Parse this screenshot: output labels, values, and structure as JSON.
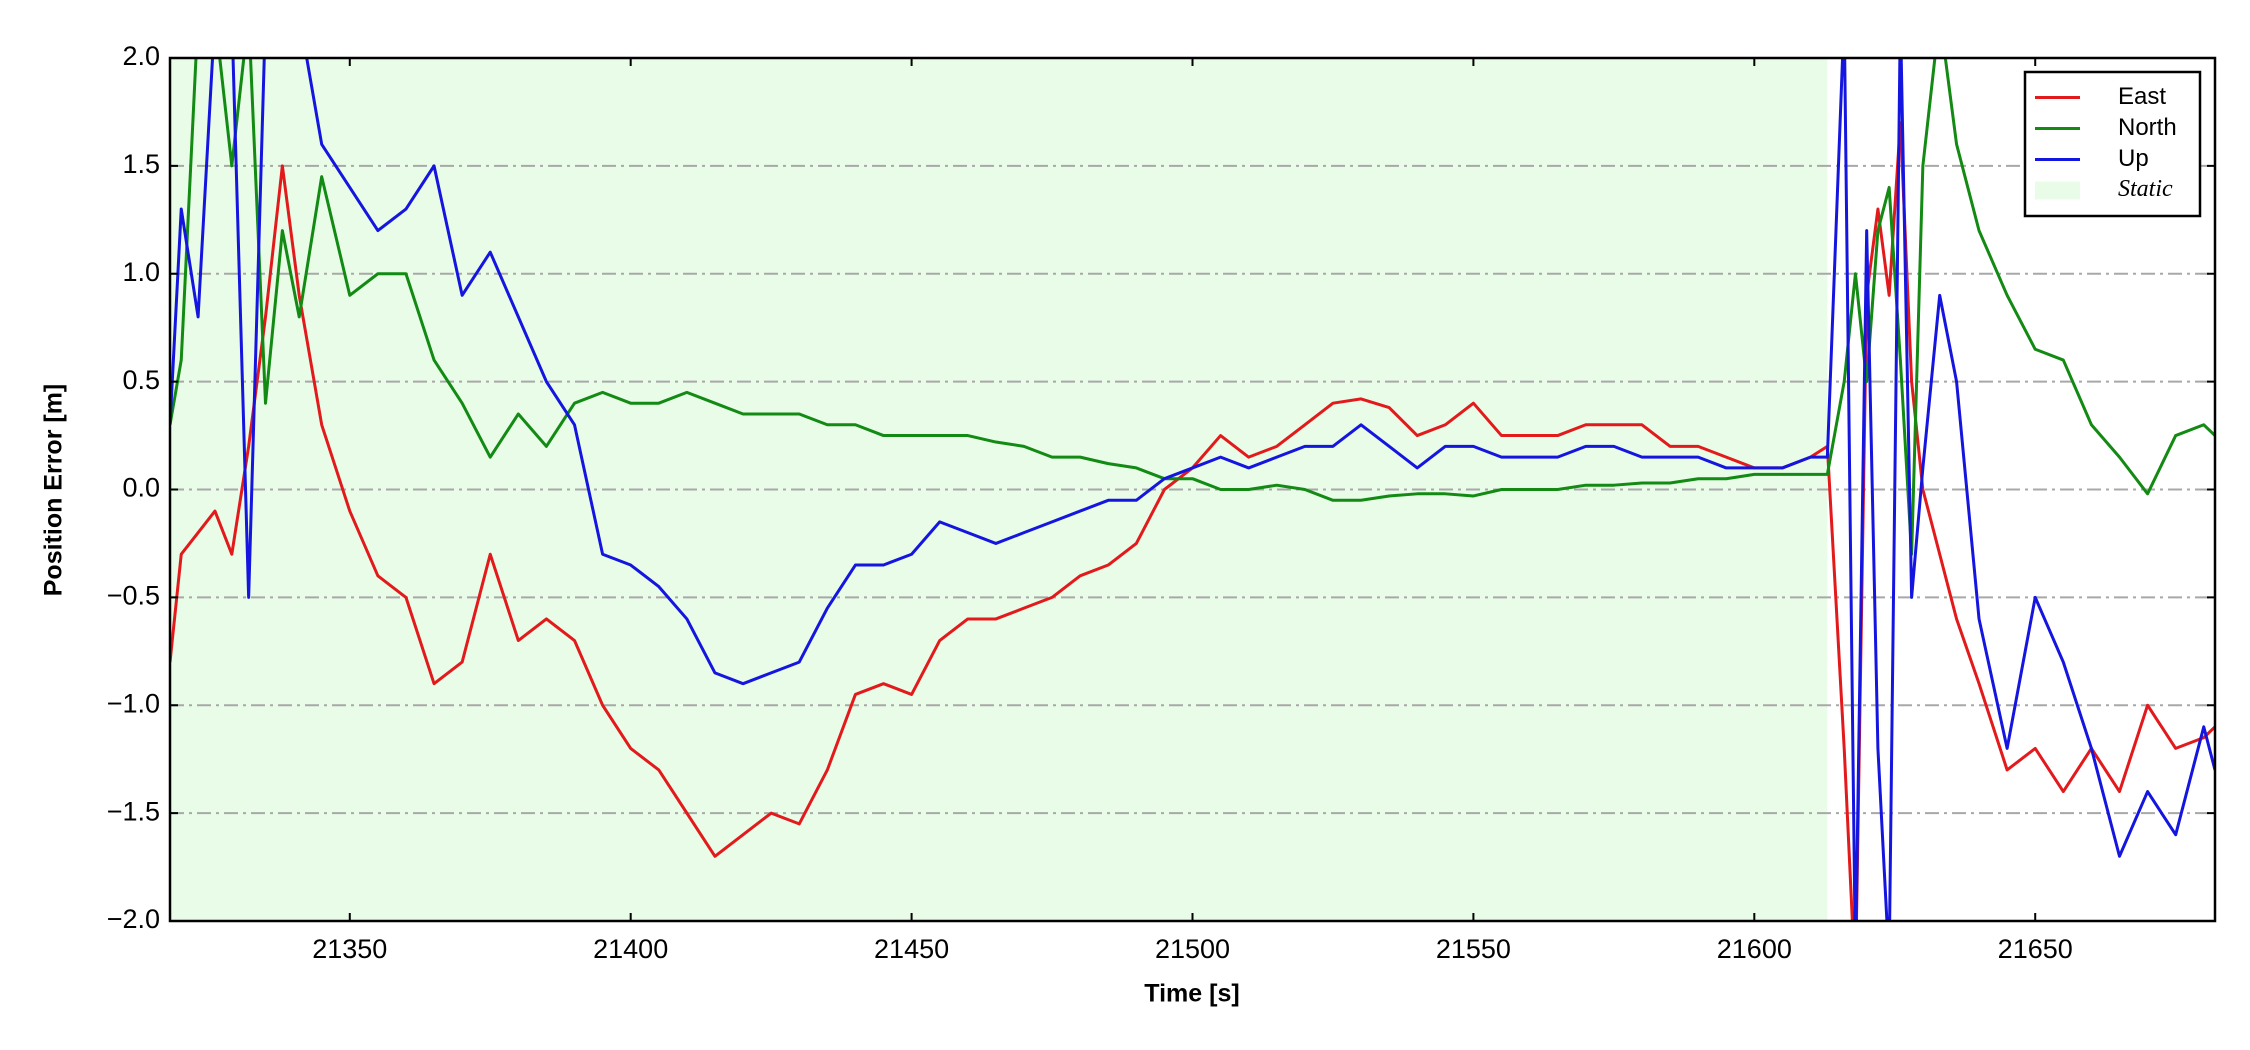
{
  "chart_data": {
    "type": "line",
    "xlabel": "Time [s]",
    "ylabel": "Position Error [m]",
    "x": [
      21318,
      21320,
      21323,
      21326,
      21329,
      21332,
      21335,
      21338,
      21341,
      21345,
      21350,
      21355,
      21360,
      21365,
      21370,
      21375,
      21380,
      21385,
      21390,
      21395,
      21400,
      21405,
      21410,
      21415,
      21420,
      21425,
      21430,
      21435,
      21440,
      21445,
      21450,
      21455,
      21460,
      21465,
      21470,
      21475,
      21480,
      21485,
      21490,
      21495,
      21500,
      21505,
      21510,
      21515,
      21520,
      21525,
      21530,
      21535,
      21540,
      21545,
      21550,
      21555,
      21560,
      21565,
      21570,
      21575,
      21580,
      21585,
      21590,
      21595,
      21600,
      21605,
      21610,
      21613,
      21616,
      21618,
      21620,
      21622,
      21624,
      21626,
      21628,
      21630,
      21633,
      21636,
      21640,
      21645,
      21650,
      21655,
      21660,
      21665,
      21670,
      21675,
      21680,
      21682
    ],
    "series": [
      {
        "name": "East",
        "color": "#e31a1c",
        "values": [
          -0.8,
          -0.3,
          -0.2,
          -0.1,
          -0.3,
          0.2,
          0.8,
          1.5,
          0.9,
          0.3,
          -0.1,
          -0.4,
          -0.5,
          -0.9,
          -0.8,
          -0.3,
          -0.7,
          -0.6,
          -0.7,
          -1.0,
          -1.2,
          -1.3,
          -1.5,
          -1.7,
          -1.6,
          -1.5,
          -1.55,
          -1.3,
          -0.95,
          -0.9,
          -0.95,
          -0.7,
          -0.6,
          -0.6,
          -0.55,
          -0.5,
          -0.4,
          -0.35,
          -0.25,
          0.0,
          0.1,
          0.25,
          0.15,
          0.2,
          0.3,
          0.4,
          0.42,
          0.38,
          0.25,
          0.3,
          0.4,
          0.25,
          0.25,
          0.25,
          0.3,
          0.3,
          0.3,
          0.2,
          0.2,
          0.15,
          0.1,
          0.1,
          0.15,
          0.2,
          -1.2,
          -2.3,
          0.9,
          1.3,
          0.9,
          1.7,
          0.5,
          0.0,
          -0.3,
          -0.6,
          -0.9,
          -1.3,
          -1.2,
          -1.4,
          -1.2,
          -1.4,
          -1.0,
          -1.2,
          -1.15,
          -1.1
        ]
      },
      {
        "name": "North",
        "color": "#138a13",
        "values": [
          0.3,
          0.6,
          2.2,
          2.2,
          1.5,
          2.2,
          0.4,
          1.2,
          0.8,
          1.45,
          0.9,
          1.0,
          1.0,
          0.6,
          0.4,
          0.15,
          0.35,
          0.2,
          0.4,
          0.45,
          0.4,
          0.4,
          0.45,
          0.4,
          0.35,
          0.35,
          0.35,
          0.3,
          0.3,
          0.25,
          0.25,
          0.25,
          0.25,
          0.22,
          0.2,
          0.15,
          0.15,
          0.12,
          0.1,
          0.05,
          0.05,
          0.0,
          0.0,
          0.02,
          0.0,
          -0.05,
          -0.05,
          -0.03,
          -0.02,
          -0.02,
          -0.03,
          0.0,
          0.0,
          0.0,
          0.02,
          0.02,
          0.03,
          0.03,
          0.05,
          0.05,
          0.07,
          0.07,
          0.07,
          0.07,
          0.5,
          1.0,
          0.5,
          1.2,
          1.4,
          0.6,
          -0.3,
          1.5,
          2.2,
          1.6,
          1.2,
          0.9,
          0.65,
          0.6,
          0.3,
          0.15,
          -0.02,
          0.25,
          0.3,
          0.25
        ]
      },
      {
        "name": "Up",
        "color": "#1515e0",
        "values": [
          0.3,
          1.3,
          0.8,
          2.2,
          2.2,
          -0.5,
          2.2,
          2.2,
          2.2,
          1.6,
          1.4,
          1.2,
          1.3,
          1.5,
          0.9,
          1.1,
          0.8,
          0.5,
          0.3,
          -0.3,
          -0.35,
          -0.45,
          -0.6,
          -0.85,
          -0.9,
          -0.85,
          -0.8,
          -0.55,
          -0.35,
          -0.35,
          -0.3,
          -0.15,
          -0.2,
          -0.25,
          -0.2,
          -0.15,
          -0.1,
          -0.05,
          -0.05,
          0.05,
          0.1,
          0.15,
          0.1,
          0.15,
          0.2,
          0.2,
          0.3,
          0.2,
          0.1,
          0.2,
          0.2,
          0.15,
          0.15,
          0.15,
          0.2,
          0.2,
          0.15,
          0.15,
          0.15,
          0.1,
          0.1,
          0.1,
          0.15,
          0.15,
          2.2,
          -2.2,
          1.2,
          -1.2,
          -2.2,
          2.2,
          -0.5,
          0.1,
          0.9,
          0.5,
          -0.6,
          -1.2,
          -0.5,
          -0.8,
          -1.2,
          -1.7,
          -1.4,
          -1.6,
          -1.1,
          -1.3
        ]
      }
    ],
    "shaded_region": {
      "label": "Static",
      "xrange": [
        21318,
        21613
      ],
      "color": "#e8fce8"
    },
    "xlim": [
      21318,
      21682
    ],
    "ylim": [
      -2,
      2
    ],
    "xticks": [
      21350,
      21400,
      21450,
      21500,
      21550,
      21600,
      21650
    ],
    "yticks": [
      {
        "value": -2,
        "label": "−2.0"
      },
      {
        "value": -1.5,
        "label": "−1.5"
      },
      {
        "value": -1,
        "label": "−1.0"
      },
      {
        "value": -0.5,
        "label": "−0.5"
      },
      {
        "value": 0,
        "label": "0.0"
      },
      {
        "value": 0.5,
        "label": "0.5"
      },
      {
        "value": 1,
        "label": "1.0"
      },
      {
        "value": 1.5,
        "label": "1.5"
      },
      {
        "value": 2,
        "label": "2.0"
      }
    ],
    "grid": true,
    "legend": "upper right"
  }
}
